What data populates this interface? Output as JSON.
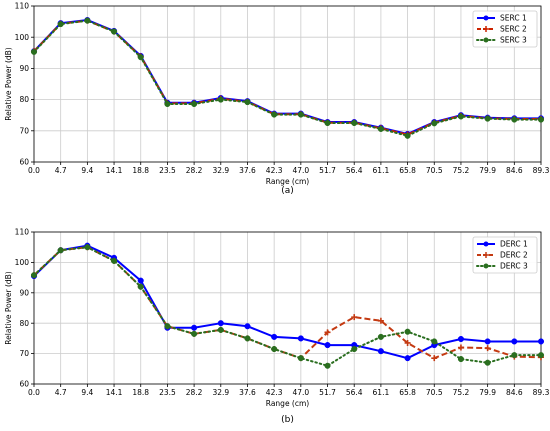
{
  "chart_data": [
    {
      "type": "line",
      "caption": "(a)",
      "xlabel": "Range (cm)",
      "ylabel": "Relative Power (dB)",
      "x": [
        "0.0",
        "4.7",
        "9.4",
        "14.1",
        "18.8",
        "23.5",
        "28.2",
        "32.9",
        "37.6",
        "42.3",
        "47.0",
        "51.7",
        "56.4",
        "61.1",
        "65.8",
        "70.5",
        "75.2",
        "79.9",
        "84.6",
        "89.3"
      ],
      "ylim": [
        60,
        110
      ],
      "yticks": [
        60,
        70,
        80,
        90,
        100,
        110
      ],
      "grid": true,
      "legend_position": "top-right",
      "series": [
        {
          "name": "SERC 1",
          "color": "#0000ff",
          "style": "solid",
          "marker": "circle",
          "values": [
            95.5,
            104.5,
            105.5,
            102,
            94,
            79,
            79,
            80.5,
            79.5,
            75.5,
            75.5,
            72.8,
            72.8,
            71,
            69,
            72.8,
            75,
            74.2,
            74,
            74
          ]
        },
        {
          "name": "SERC 2",
          "color": "#cc2200",
          "style": "dashed",
          "marker": "plus",
          "values": [
            95.5,
            104.3,
            105.3,
            101.8,
            93.8,
            78.8,
            78.8,
            80.3,
            79.3,
            75.3,
            75.3,
            72.6,
            72.6,
            70.8,
            68.8,
            72.6,
            74.8,
            74,
            73.8,
            73.8
          ]
        },
        {
          "name": "SERC 3",
          "color": "#2a6e1f",
          "style": "dotted",
          "marker": "circle",
          "values": [
            95.3,
            104.2,
            105.3,
            101.8,
            93.6,
            78.6,
            78.6,
            80,
            79.2,
            75.2,
            75.2,
            72.5,
            72.5,
            70.6,
            68.4,
            72.4,
            74.6,
            73.9,
            73.6,
            73.6
          ]
        }
      ]
    },
    {
      "type": "line",
      "caption": "(b)",
      "xlabel": "Range (cm)",
      "ylabel": "Relative Power (dB)",
      "x": [
        "0.0",
        "4.7",
        "9.4",
        "14.1",
        "18.8",
        "23.5",
        "28.2",
        "32.9",
        "37.6",
        "42.3",
        "47.0",
        "51.7",
        "56.4",
        "61.1",
        "65.8",
        "70.5",
        "75.2",
        "79.9",
        "84.6",
        "89.3"
      ],
      "ylim": [
        60,
        110
      ],
      "yticks": [
        60,
        70,
        80,
        90,
        100,
        110
      ],
      "grid": true,
      "legend_position": "top-right",
      "series": [
        {
          "name": "DERC 1",
          "color": "#0000ff",
          "style": "solid",
          "marker": "circle",
          "values": [
            95.5,
            104,
            105.5,
            101.5,
            94,
            78.5,
            78.5,
            80,
            79,
            75.5,
            75,
            72.8,
            72.8,
            70.8,
            68.5,
            72.8,
            74.8,
            74,
            74,
            74
          ]
        },
        {
          "name": "DERC 2",
          "color": "#c43a12",
          "style": "dashed",
          "marker": "plus",
          "values": [
            95.8,
            104,
            105,
            100.5,
            92,
            79,
            76.5,
            77.8,
            75,
            71.5,
            68.5,
            77,
            82,
            80.8,
            73.5,
            68.5,
            72,
            71.8,
            69,
            68.8
          ]
        },
        {
          "name": "DERC 3",
          "color": "#2a6e1f",
          "style": "dotted",
          "marker": "circle",
          "values": [
            95.8,
            104,
            105,
            100.5,
            92,
            79,
            76.5,
            77.8,
            75,
            71.5,
            68.5,
            66,
            71.5,
            75.5,
            77.2,
            74,
            68.2,
            67,
            69.5,
            69.5
          ]
        }
      ]
    }
  ]
}
